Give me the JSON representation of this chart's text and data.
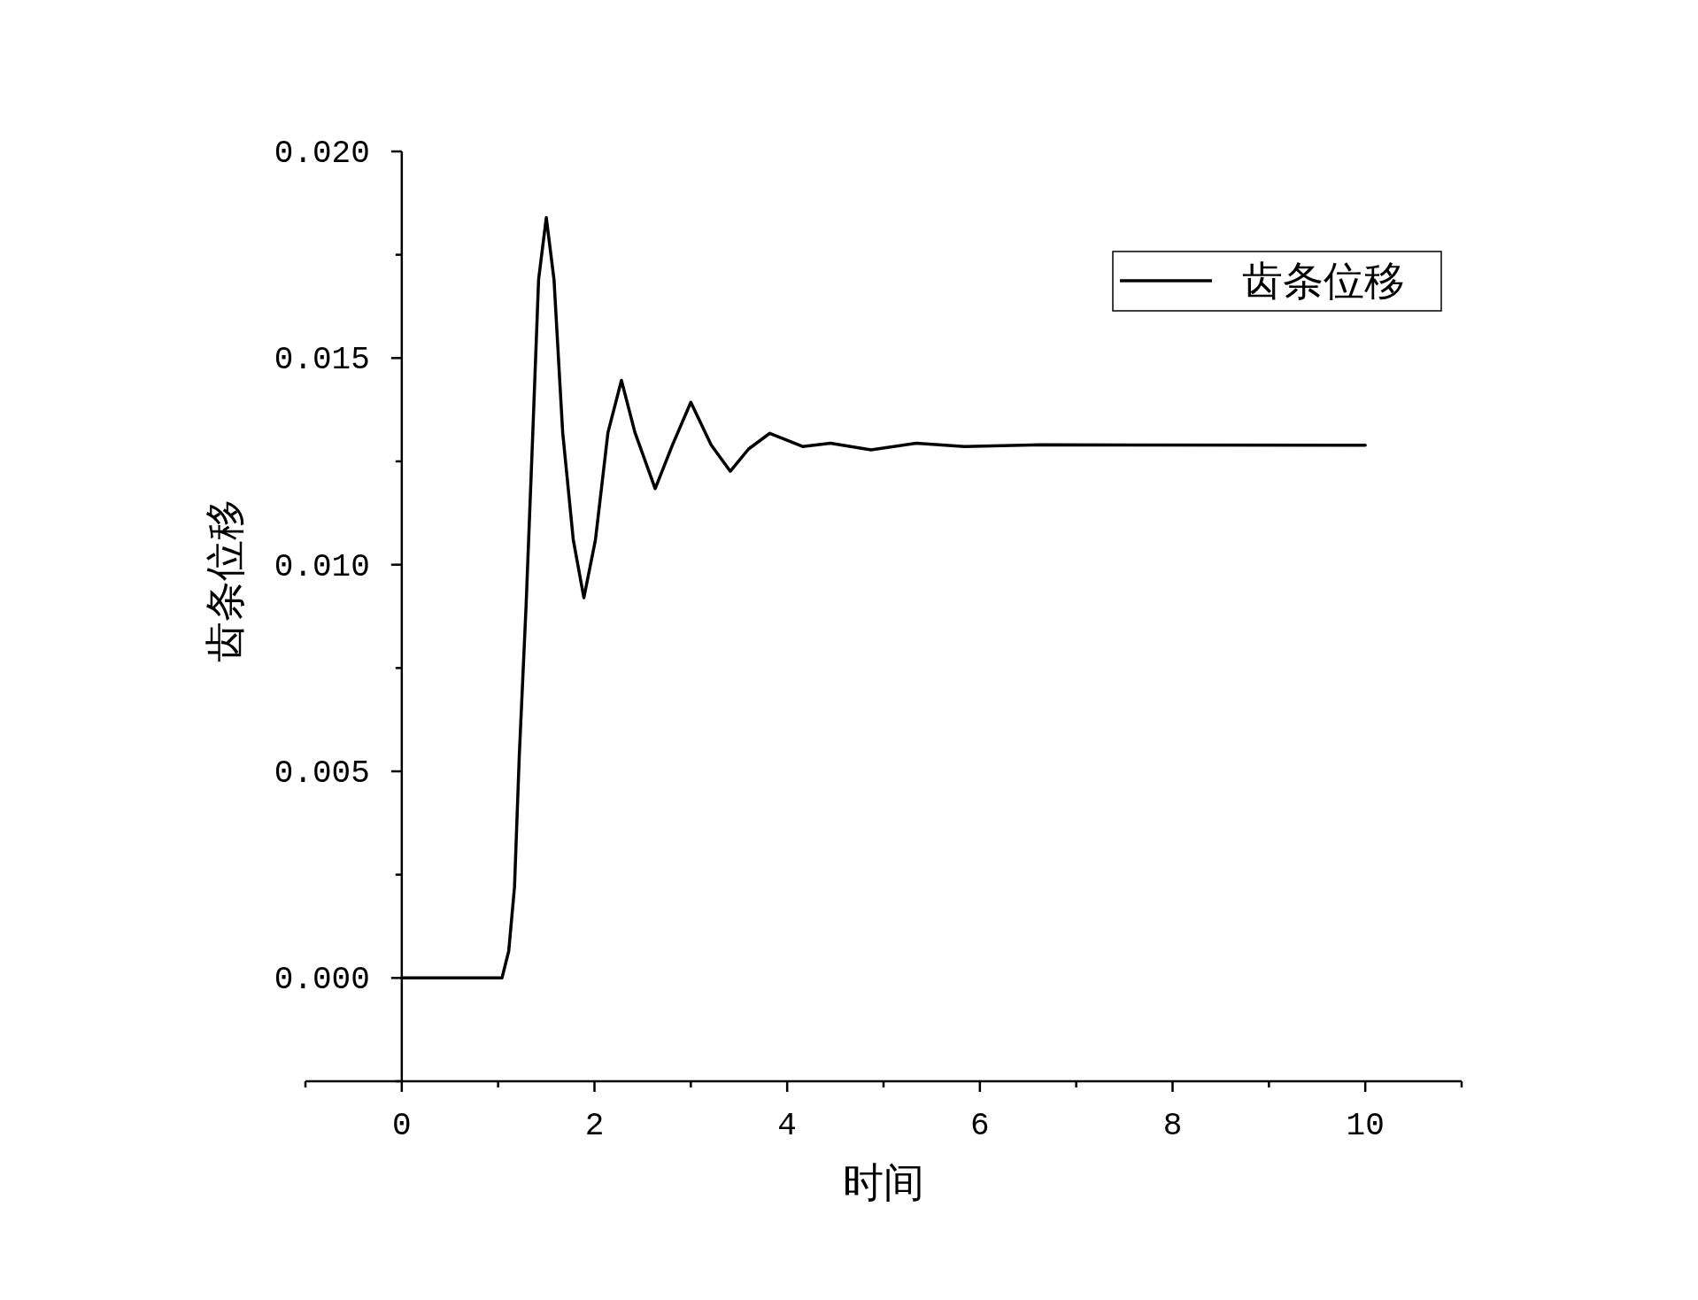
{
  "chart_data": {
    "type": "line",
    "xlabel": "时间",
    "ylabel": "齿条位移",
    "legend": "top right",
    "marker": "none",
    "line_style": "solid",
    "xlim": [
      -1,
      11
    ],
    "ylim": [
      -0.0025,
      0.02
    ],
    "xticks": [
      {
        "value": -1,
        "label": null
      },
      0,
      {
        "value": 1,
        "label": null
      },
      2,
      {
        "value": 3,
        "label": null
      },
      4,
      {
        "value": 5,
        "label": null
      },
      6,
      {
        "value": 7,
        "label": null
      },
      8,
      {
        "value": 9,
        "label": null
      },
      10,
      {
        "value": 11,
        "label": null
      }
    ],
    "yticks": [
      {
        "value": -0.0025,
        "label": null
      },
      {
        "value": 0,
        "label": "0.000"
      },
      {
        "value": 0.0025,
        "label": null
      },
      {
        "value": 0.005,
        "label": "0.005"
      },
      {
        "value": 0.0075,
        "label": null
      },
      {
        "value": 0.01,
        "label": "0.010"
      },
      {
        "value": 0.0125,
        "label": null
      },
      {
        "value": 0.015,
        "label": "0.015"
      },
      {
        "value": 0.0175,
        "label": null
      },
      {
        "value": 0.02,
        "label": "0.020"
      }
    ],
    "series": [
      {
        "name": "齿条位移",
        "color": "#000000",
        "x": [
          0,
          1.04,
          1.11,
          1.17,
          1.22,
          1.29,
          1.36,
          1.42,
          1.5,
          1.58,
          1.67,
          1.78,
          1.89,
          2.01,
          2.14,
          2.28,
          2.42,
          2.63,
          2.81,
          3.0,
          3.21,
          3.41,
          3.6,
          3.82,
          4.16,
          4.45,
          4.87,
          5.34,
          5.84,
          6.63,
          10
        ],
        "values": [
          0,
          0,
          0.00065,
          0.0022,
          0.0054,
          0.009,
          0.0132,
          0.0169,
          0.0184,
          0.0169,
          0.0132,
          0.0106,
          0.0092,
          0.0106,
          0.0132,
          0.01446,
          0.0132,
          0.01184,
          0.0129,
          0.01393,
          0.0129,
          0.01226,
          0.0128,
          0.01318,
          0.01286,
          0.01294,
          0.01278,
          0.01294,
          0.01286,
          0.0129,
          0.01289
        ]
      }
    ]
  }
}
